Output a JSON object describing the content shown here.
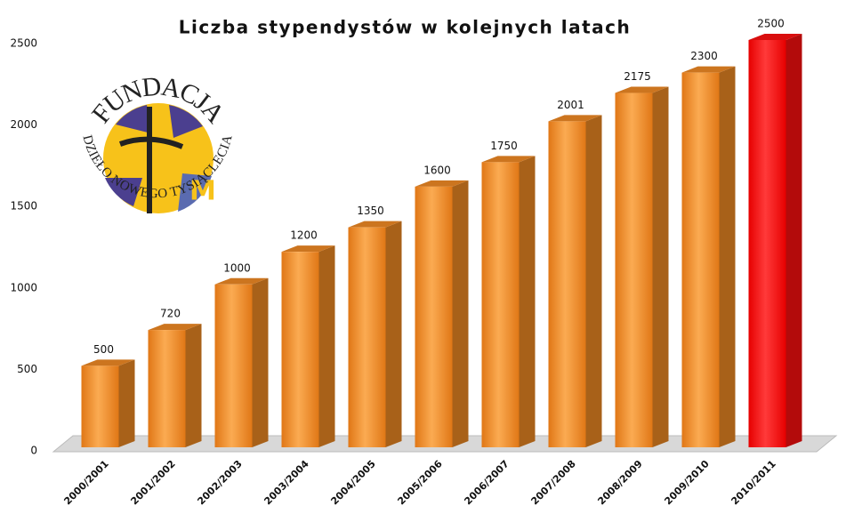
{
  "chart_data": {
    "type": "bar3d",
    "title": "Liczba stypendystów  w kolejnych latach",
    "annotations": [
      "FUNDACJA",
      "„DZIEŁO NOWEGO TYSIĄCLECIA”"
    ],
    "categories": [
      "2000/2001",
      "2001/2002",
      "2002/2003",
      "2003/2004",
      "2004/2005",
      "2005/2006",
      "2006/2007",
      "2007/2008",
      "2008/2009",
      "2009/2010",
      "2010/2011"
    ],
    "values": [
      500,
      720,
      1000,
      1200,
      1350,
      1600,
      1750,
      2001,
      2175,
      2300,
      2500
    ],
    "colors": [
      "#f08a24",
      "#f08a24",
      "#f08a24",
      "#f08a24",
      "#f08a24",
      "#f08a24",
      "#f08a24",
      "#f08a24",
      "#f08a24",
      "#f08a24",
      "#ff1010"
    ],
    "ylim": [
      0,
      2500
    ],
    "yticks": [
      0,
      500,
      1000,
      1500,
      2000,
      2500
    ]
  }
}
